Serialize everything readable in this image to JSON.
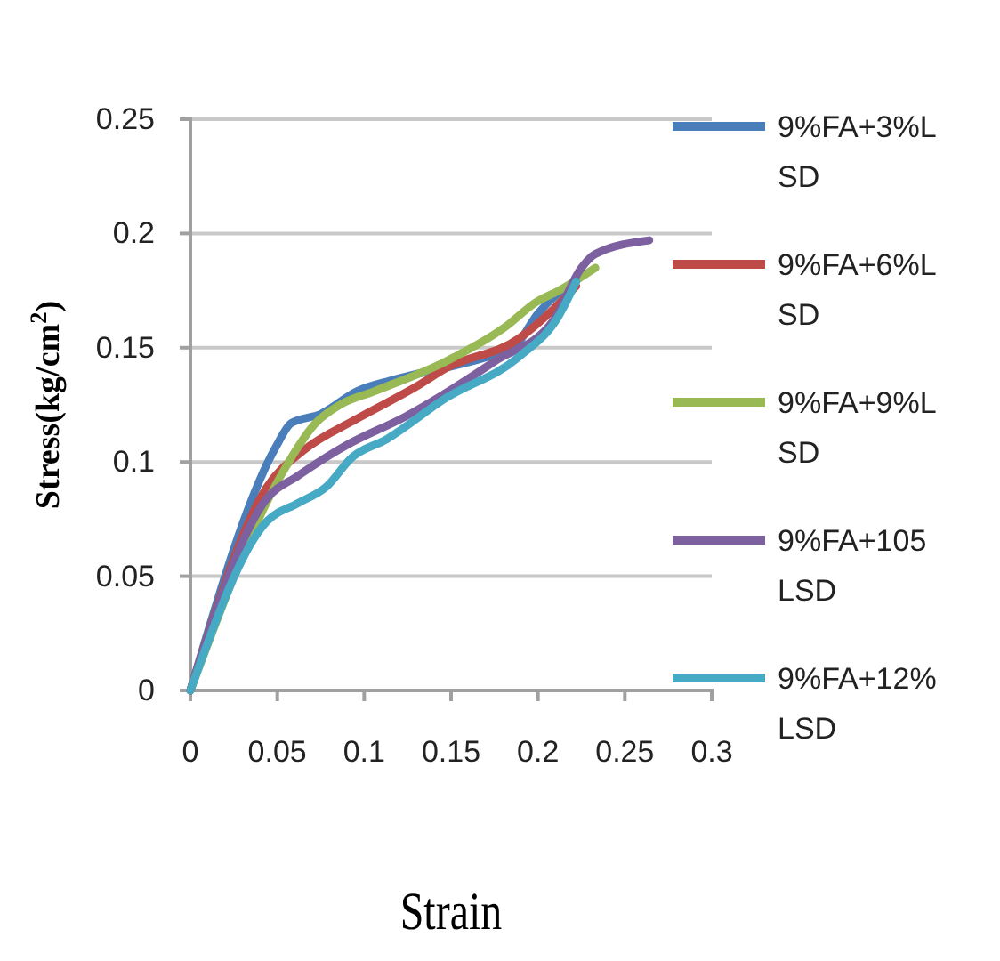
{
  "chart_data": {
    "type": "line",
    "xlabel": "Strain",
    "ylabel": "Stress(kg/cm$^{2}$)",
    "xlim": [
      0,
      0.3
    ],
    "ylim": [
      0,
      0.25
    ],
    "xticks": [
      0,
      0.05,
      0.1,
      0.15,
      0.2,
      0.25,
      0.3
    ],
    "yticks": [
      0,
      0.05,
      0.1,
      0.15,
      0.2,
      0.25
    ],
    "grid": "y",
    "legend": "right",
    "marker": "none",
    "line_style": "solid",
    "series": [
      {
        "name": "9%FA+3%LSD",
        "color": "#4a7ebb",
        "x": [
          0,
          0.0495,
          0.058,
          0.075,
          0.096,
          0.117,
          0.171,
          0.186,
          0.2,
          0.223
        ],
        "values": [
          0,
          0.107,
          0.117,
          0.121,
          0.131,
          0.136,
          0.146,
          0.15,
          0.165,
          0.18
        ]
      },
      {
        "name": "9%FA+6%LSD",
        "color": "#be4b48",
        "x": [
          0,
          0.044,
          0.065,
          0.096,
          0.13,
          0.147,
          0.189,
          0.209,
          0.222
        ],
        "values": [
          0,
          0.089,
          0.105,
          0.119,
          0.133,
          0.141,
          0.154,
          0.167,
          0.177
        ]
      },
      {
        "name": "9%FA+9%LSD",
        "color": "#98b954",
        "x": [
          0,
          0.052,
          0.072,
          0.086,
          0.106,
          0.147,
          0.181,
          0.199,
          0.212,
          0.233
        ],
        "values": [
          0,
          0.094,
          0.117,
          0.125,
          0.131,
          0.144,
          0.159,
          0.17,
          0.175,
          0.185
        ]
      },
      {
        "name": "9%FA+105LSD",
        "color": "#7d60a0",
        "x": [
          0,
          0.044,
          0.062,
          0.089,
          0.124,
          0.175,
          0.209,
          0.225,
          0.233,
          0.264
        ],
        "values": [
          0,
          0.084,
          0.094,
          0.107,
          0.12,
          0.144,
          0.162,
          0.185,
          0.191,
          0.197
        ]
      },
      {
        "name": "9%FA+12%LSD",
        "color": "#46aac5",
        "x": [
          0,
          0.044,
          0.062,
          0.078,
          0.093,
          0.113,
          0.147,
          0.189,
          0.212,
          0.222
        ],
        "values": [
          0,
          0.074,
          0.082,
          0.089,
          0.102,
          0.11,
          0.128,
          0.146,
          0.164,
          0.179
        ]
      }
    ]
  }
}
